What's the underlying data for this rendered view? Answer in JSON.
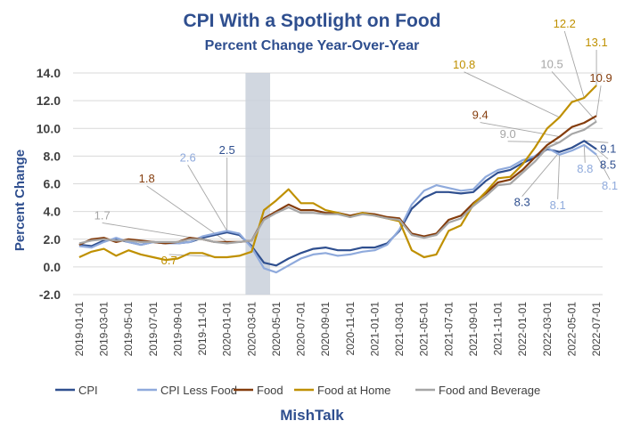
{
  "chart_data": {
    "type": "line",
    "title": "CPI With a Spotlight on Food",
    "subtitle": "Percent Change Year-Over-Year",
    "ylabel": "Percent Change",
    "source": "MishTalk",
    "ylim": [
      -2,
      14
    ],
    "yticks": [
      "-2.0",
      "0.0",
      "2.0",
      "4.0",
      "6.0",
      "8.0",
      "10.0",
      "12.0",
      "14.0"
    ],
    "grid": "horizontal",
    "legend_position": "bottom",
    "shaded_period": [
      "2020-03-01",
      "2020-04-01"
    ],
    "x": [
      "2019-01-01",
      "2019-02-01",
      "2019-03-01",
      "2019-04-01",
      "2019-05-01",
      "2019-06-01",
      "2019-07-01",
      "2019-08-01",
      "2019-09-01",
      "2019-10-01",
      "2019-11-01",
      "2019-12-01",
      "2020-01-01",
      "2020-02-01",
      "2020-03-01",
      "2020-04-01",
      "2020-05-01",
      "2020-06-01",
      "2020-07-01",
      "2020-08-01",
      "2020-09-01",
      "2020-10-01",
      "2020-11-01",
      "2020-12-01",
      "2021-01-01",
      "2021-02-01",
      "2021-03-01",
      "2021-04-01",
      "2021-05-01",
      "2021-06-01",
      "2021-07-01",
      "2021-08-01",
      "2021-09-01",
      "2021-10-01",
      "2021-11-01",
      "2021-12-01",
      "2022-01-01",
      "2022-02-01",
      "2022-03-01",
      "2022-04-01",
      "2022-05-01",
      "2022-06-01",
      "2022-07-01"
    ],
    "xtick_labels": [
      "2019-01-01",
      "2019-03-01",
      "2019-05-01",
      "2019-07-01",
      "2019-09-01",
      "2019-11-01",
      "2020-01-01",
      "2020-03-01",
      "2020-05-01",
      "2020-07-01",
      "2020-09-01",
      "2020-11-01",
      "2021-01-01",
      "2021-03-01",
      "2021-05-01",
      "2021-07-01",
      "2021-09-01",
      "2021-11-01",
      "2022-01-01",
      "2022-03-01",
      "2022-05-01",
      "2022-07-01"
    ],
    "series": [
      {
        "name": "CPI",
        "color": "#2f4f8f",
        "values": [
          1.6,
          1.5,
          1.9,
          2.0,
          1.8,
          1.6,
          1.8,
          1.7,
          1.7,
          1.8,
          2.1,
          2.3,
          2.5,
          2.3,
          1.5,
          0.3,
          0.1,
          0.6,
          1.0,
          1.3,
          1.4,
          1.2,
          1.2,
          1.4,
          1.4,
          1.7,
          2.6,
          4.2,
          5.0,
          5.4,
          5.4,
          5.3,
          5.4,
          6.2,
          6.8,
          7.0,
          7.5,
          7.9,
          8.5,
          8.3,
          8.6,
          9.1,
          8.5
        ]
      },
      {
        "name": "CPI Less Food",
        "color": "#8faadc",
        "values": [
          1.5,
          1.4,
          1.8,
          2.1,
          1.8,
          1.6,
          1.8,
          1.7,
          1.7,
          1.8,
          2.2,
          2.4,
          2.6,
          2.4,
          1.4,
          -0.1,
          -0.4,
          0.1,
          0.6,
          0.9,
          1.0,
          0.8,
          0.9,
          1.1,
          1.2,
          1.6,
          2.7,
          4.5,
          5.5,
          5.9,
          5.7,
          5.5,
          5.6,
          6.5,
          7.0,
          7.2,
          7.7,
          8.0,
          8.6,
          8.1,
          8.4,
          8.8,
          8.1
        ]
      },
      {
        "name": "Food",
        "color": "#843c0c",
        "values": [
          1.6,
          2.0,
          2.1,
          1.8,
          2.0,
          1.9,
          1.8,
          1.7,
          1.8,
          2.1,
          2.0,
          1.8,
          1.8,
          1.8,
          1.9,
          3.5,
          4.0,
          4.5,
          4.1,
          4.1,
          3.9,
          3.9,
          3.7,
          3.9,
          3.8,
          3.6,
          3.5,
          2.4,
          2.2,
          2.4,
          3.4,
          3.7,
          4.6,
          5.3,
          6.1,
          6.3,
          7.0,
          7.9,
          8.8,
          9.4,
          10.1,
          10.4,
          10.9
        ]
      },
      {
        "name": "Food at Home",
        "color": "#bf9000",
        "values": [
          0.7,
          1.1,
          1.3,
          0.8,
          1.2,
          0.9,
          0.7,
          0.5,
          0.6,
          1.0,
          1.0,
          0.7,
          0.7,
          0.8,
          1.1,
          4.1,
          4.8,
          5.6,
          4.6,
          4.6,
          4.1,
          3.9,
          3.6,
          3.9,
          3.7,
          3.5,
          3.3,
          1.2,
          0.7,
          0.9,
          2.6,
          3.0,
          4.5,
          5.4,
          6.4,
          6.5,
          7.4,
          8.6,
          10.0,
          10.8,
          11.9,
          12.2,
          13.1
        ]
      },
      {
        "name": "Food and Beverage",
        "color": "#a6a6a6",
        "values": [
          1.7,
          1.9,
          2.0,
          1.9,
          1.9,
          1.8,
          1.8,
          1.8,
          1.8,
          2.0,
          2.0,
          1.8,
          1.7,
          1.8,
          1.9,
          3.4,
          3.9,
          4.3,
          3.9,
          3.9,
          3.8,
          3.8,
          3.6,
          3.8,
          3.7,
          3.5,
          3.4,
          2.3,
          2.1,
          2.3,
          3.2,
          3.5,
          4.4,
          5.1,
          5.9,
          6.0,
          6.8,
          7.6,
          8.6,
          9.0,
          9.6,
          9.9,
          10.5
        ]
      }
    ],
    "annotations": [
      {
        "text": "2.5",
        "series": "CPI",
        "x": "2020-01-01",
        "value": 2.5
      },
      {
        "text": "2.6",
        "series": "CPI Less Food",
        "x": "2020-01-01",
        "value": 2.6
      },
      {
        "text": "1.8",
        "series": "Food",
        "x": "2020-01-01",
        "value": 1.8
      },
      {
        "text": "1.7",
        "series": "Food and Beverage",
        "x": "2020-01-01",
        "value": 1.7
      },
      {
        "text": "0.7",
        "series": "Food at Home",
        "x": "2020-01-01",
        "value": 0.7
      },
      {
        "text": "12.2",
        "series": "Food at Home",
        "x": "2022-06-01",
        "value": 12.2
      },
      {
        "text": "13.1",
        "series": "Food at Home",
        "x": "2022-07-01",
        "value": 13.1
      },
      {
        "text": "10.8",
        "series": "Food at Home",
        "x": "2022-04-01",
        "value": 10.8
      },
      {
        "text": "10.5",
        "series": "Food and Beverage",
        "x": "2022-07-01",
        "value": 10.5
      },
      {
        "text": "9.4",
        "series": "Food",
        "x": "2022-04-01",
        "value": 9.4
      },
      {
        "text": "10.9",
        "series": "Food",
        "x": "2022-07-01",
        "value": 10.9
      },
      {
        "text": "9.0",
        "series": "Food and Beverage",
        "x": "2022-04-01",
        "value": 9.0
      },
      {
        "text": "9.1",
        "series": "CPI",
        "x": "2022-06-01",
        "value": 9.1
      },
      {
        "text": "8.5",
        "series": "CPI",
        "x": "2022-07-01",
        "value": 8.5
      },
      {
        "text": "8.3",
        "series": "CPI",
        "x": "2022-04-01",
        "value": 8.3
      },
      {
        "text": "8.1",
        "series": "CPI Less Food",
        "x": "2022-04-01",
        "value": 8.1
      },
      {
        "text": "8.8",
        "series": "CPI Less Food",
        "x": "2022-06-01",
        "value": 8.8
      },
      {
        "text": "8.1",
        "series": "CPI Less Food",
        "x": "2022-07-01",
        "value": 8.1
      }
    ]
  }
}
